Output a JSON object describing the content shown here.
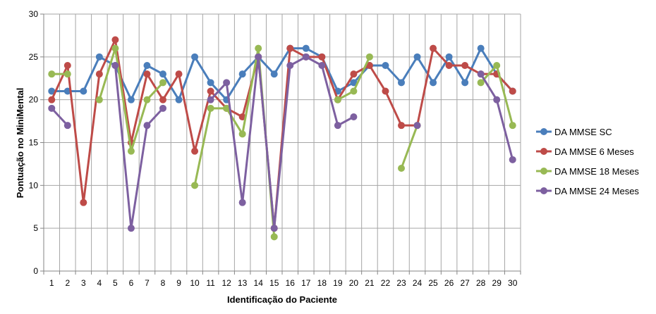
{
  "chart_data": {
    "type": "line",
    "xlabel": "Identificação do Paciente",
    "ylabel": "Pontuação no MiniMental",
    "ylim": [
      0,
      30
    ],
    "yticks": [
      0,
      5,
      10,
      15,
      20,
      25,
      30
    ],
    "grid": true,
    "legend_position": "right",
    "x": [
      1,
      2,
      3,
      4,
      5,
      6,
      7,
      8,
      9,
      10,
      11,
      12,
      13,
      14,
      15,
      16,
      17,
      18,
      19,
      20,
      21,
      22,
      23,
      24,
      25,
      26,
      27,
      28,
      29,
      30
    ],
    "series": [
      {
        "name": "DA MMSE SC",
        "color": "#4a7ebb",
        "values": [
          21,
          21,
          21,
          25,
          24,
          20,
          24,
          23,
          20,
          25,
          22,
          20,
          23,
          25,
          23,
          26,
          26,
          25,
          21,
          22,
          24,
          24,
          22,
          25,
          22,
          25,
          22,
          26,
          23,
          21
        ]
      },
      {
        "name": "DA MMSE 6 Meses",
        "color": "#be4b48",
        "values": [
          20,
          24,
          8,
          23,
          27,
          15,
          23,
          20,
          23,
          14,
          21,
          19,
          18,
          25,
          5,
          26,
          25,
          25,
          20,
          23,
          24,
          21,
          17,
          17,
          26,
          24,
          24,
          23,
          23,
          21
        ]
      },
      {
        "name": "DA MMSE 18 Meses",
        "color": "#98b954",
        "values": [
          23,
          23,
          null,
          20,
          26,
          14,
          20,
          22,
          null,
          10,
          19,
          19,
          16,
          26,
          4,
          null,
          null,
          null,
          20,
          21,
          25,
          null,
          12,
          17,
          null,
          null,
          null,
          22,
          24,
          17
        ]
      },
      {
        "name": "DA MMSE 24 Meses",
        "color": "#7d60a0",
        "values": [
          19,
          17,
          null,
          null,
          24,
          5,
          17,
          19,
          null,
          null,
          20,
          22,
          8,
          25,
          5,
          24,
          25,
          24,
          17,
          18,
          null,
          null,
          null,
          17,
          null,
          null,
          null,
          23,
          20,
          13
        ]
      }
    ]
  }
}
